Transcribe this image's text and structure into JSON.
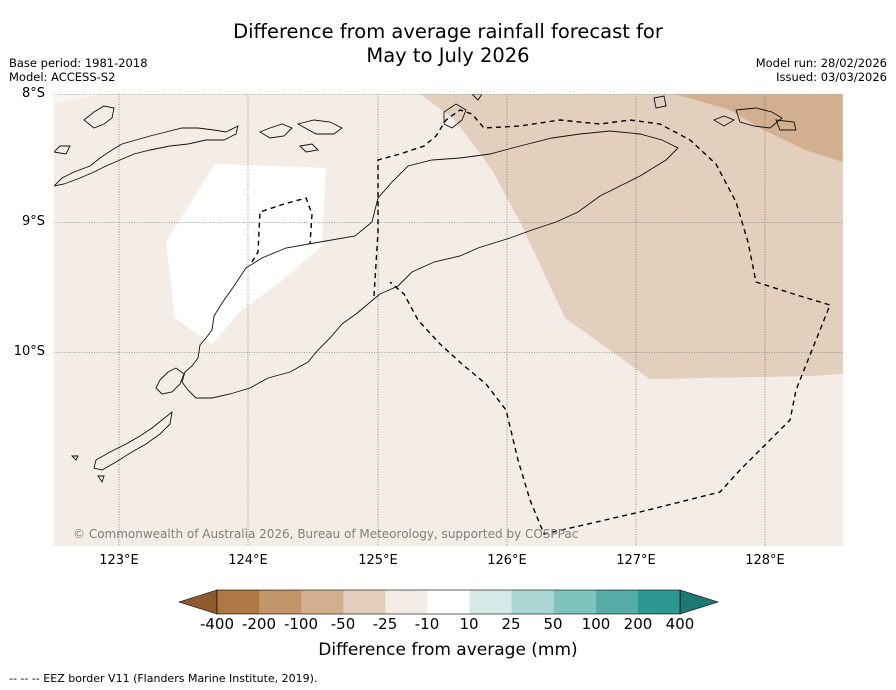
{
  "title": {
    "line1": "Difference from average rainfall forecast for",
    "line2": "May to July 2026"
  },
  "meta": {
    "base_period": "Base period: 1981-2018",
    "model": "Model: ACCESS-S2",
    "model_run": "Model run: 28/02/2026",
    "issued": "Issued: 03/03/2026"
  },
  "axes": {
    "lat_labels": [
      "8°S",
      "9°S",
      "10°S"
    ],
    "lon_labels": [
      "123°E",
      "124°E",
      "125°E",
      "126°E",
      "127°E",
      "128°E"
    ]
  },
  "map": {
    "copyright": "© Commonwealth of Australia 2026, Bureau of Meteorology, supported by COSPPac",
    "regions": [
      "-25 to -10 (background)",
      "-10 to 10 (near average)",
      "-50 to -25",
      "-100 to -50"
    ]
  },
  "colorbar": {
    "labels": [
      "-400",
      "-200",
      "-100",
      "-50",
      "-25",
      "-10",
      "10",
      "25",
      "50",
      "100",
      "200",
      "400"
    ],
    "colors": [
      "#8f5a2e",
      "#ad7843",
      "#c19469",
      "#d2b08f",
      "#e3cfbc",
      "#f4ece6",
      "#ffffff",
      "#d5e9e7",
      "#abd6d3",
      "#80c2bd",
      "#55aca6",
      "#2c9891",
      "#1b7873"
    ],
    "title": "Difference from average (mm)"
  },
  "footnote": "--  --  -- EEZ border V11 (Flanders Marine Institute, 2019)."
}
